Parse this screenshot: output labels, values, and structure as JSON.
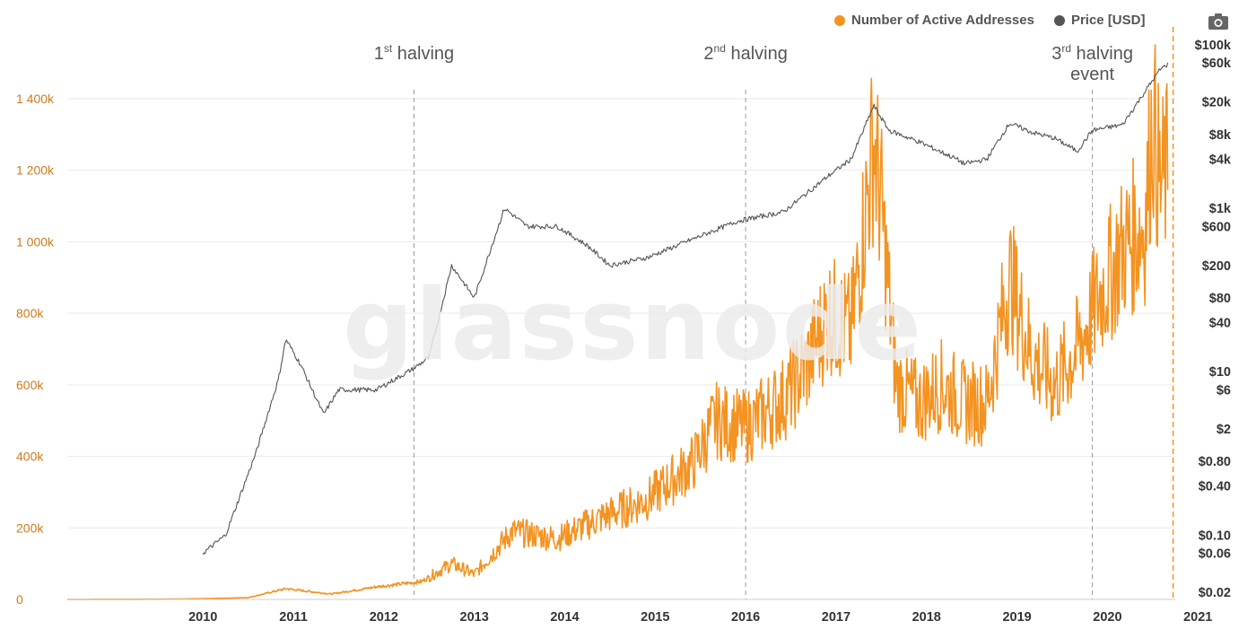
{
  "legend": {
    "active_label": "Number of Active Addresses",
    "price_label": "Price [USD]"
  },
  "watermark": "glassnode",
  "colors": {
    "active": "#f39322",
    "price": "#555555",
    "left_axis": "#cc7a1a",
    "grid": "#e9e9e9",
    "halving_line": "#999999"
  },
  "icons": {
    "export": "camera-icon"
  },
  "chart_data": [
    {
      "type": "line",
      "x_axis": {
        "ticks": [
          "2010",
          "2011",
          "2012",
          "2013",
          "2014",
          "2015",
          "2016",
          "2017",
          "2018",
          "2019",
          "2020",
          "2021"
        ],
        "range": [
          "2009-01",
          "2021-04"
        ]
      },
      "y_left": {
        "ticks": [
          "0",
          "200k",
          "400k",
          "600k",
          "800k",
          "1 000k",
          "1 200k",
          "1 400k"
        ],
        "range": [
          0,
          1400000
        ]
      },
      "y_right": {
        "scale": "log",
        "ticks": [
          "$100k",
          "$60k",
          "$20k",
          "$8k",
          "$4k",
          "$1k",
          "$600",
          "$200",
          "$80",
          "$40",
          "$10",
          "$6",
          "$2",
          "$0.80",
          "$0.40",
          "$0.10",
          "$0.06",
          "$0.02"
        ],
        "range": [
          0.02,
          100000
        ]
      },
      "annotations": [
        {
          "text": "1",
          "sup": "st",
          "rest": " halving",
          "line2": "",
          "date": "2012-11"
        },
        {
          "text": "2",
          "sup": "nd",
          "rest": " halving",
          "line2": "",
          "date": "2016-07"
        },
        {
          "text": "3",
          "sup": "rd",
          "rest": " halving",
          "line2": "event",
          "date": "2020-05"
        }
      ],
      "current_marker": "2021-03",
      "grid": true,
      "legend_position": "top-right",
      "series": [
        {
          "name": "Number of Active Addresses",
          "axis": "left",
          "points": [
            [
              "2009-01",
              0
            ],
            [
              "2010-01",
              500
            ],
            [
              "2010-07",
              2000
            ],
            [
              "2011-01",
              5000
            ],
            [
              "2011-06",
              30000
            ],
            [
              "2011-12",
              15000
            ],
            [
              "2012-06",
              35000
            ],
            [
              "2012-12",
              50000
            ],
            [
              "2013-04",
              100000
            ],
            [
              "2013-07",
              70000
            ],
            [
              "2013-12",
              190000
            ],
            [
              "2014-06",
              170000
            ],
            [
              "2014-12",
              230000
            ],
            [
              "2015-06",
              280000
            ],
            [
              "2015-12",
              380000
            ],
            [
              "2016-03",
              500000
            ],
            [
              "2016-07",
              480000
            ],
            [
              "2016-12",
              560000
            ],
            [
              "2017-03",
              650000
            ],
            [
              "2017-06",
              800000
            ],
            [
              "2017-09",
              750000
            ],
            [
              "2017-12",
              1280000
            ],
            [
              "2018-01",
              1100000
            ],
            [
              "2018-03",
              600000
            ],
            [
              "2018-06",
              550000
            ],
            [
              "2018-09",
              600000
            ],
            [
              "2018-12",
              550000
            ],
            [
              "2019-03",
              550000
            ],
            [
              "2019-06",
              900000
            ],
            [
              "2019-09",
              680000
            ],
            [
              "2019-12",
              600000
            ],
            [
              "2020-03",
              700000
            ],
            [
              "2020-06",
              850000
            ],
            [
              "2020-09",
              980000
            ],
            [
              "2020-12",
              1050000
            ],
            [
              "2021-01",
              1350000
            ],
            [
              "2021-02",
              1150000
            ],
            [
              "2021-03",
              1200000
            ]
          ]
        },
        {
          "name": "Price [USD]",
          "axis": "right",
          "points": [
            [
              "2010-07",
              0.06
            ],
            [
              "2010-10",
              0.1
            ],
            [
              "2011-02",
              1
            ],
            [
              "2011-05",
              8
            ],
            [
              "2011-06",
              25
            ],
            [
              "2011-08",
              12
            ],
            [
              "2011-11",
              3
            ],
            [
              "2012-01",
              6
            ],
            [
              "2012-06",
              6
            ],
            [
              "2012-11",
              11
            ],
            [
              "2013-01",
              15
            ],
            [
              "2013-04",
              200
            ],
            [
              "2013-07",
              80
            ],
            [
              "2013-11",
              1000
            ],
            [
              "2014-02",
              600
            ],
            [
              "2014-06",
              600
            ],
            [
              "2014-10",
              350
            ],
            [
              "2015-01",
              200
            ],
            [
              "2015-06",
              250
            ],
            [
              "2015-12",
              420
            ],
            [
              "2016-06",
              700
            ],
            [
              "2016-12",
              900
            ],
            [
              "2017-06",
              2500
            ],
            [
              "2017-09",
              4000
            ],
            [
              "2017-12",
              18000
            ],
            [
              "2018-02",
              9000
            ],
            [
              "2018-06",
              6500
            ],
            [
              "2018-11",
              4000
            ],
            [
              "2018-12",
              3500
            ],
            [
              "2019-03",
              4000
            ],
            [
              "2019-06",
              11000
            ],
            [
              "2019-09",
              8500
            ],
            [
              "2019-12",
              7200
            ],
            [
              "2020-03",
              5000
            ],
            [
              "2020-05",
              9000
            ],
            [
              "2020-09",
              10500
            ],
            [
              "2020-12",
              27000
            ],
            [
              "2021-02",
              50000
            ],
            [
              "2021-03",
              58000
            ]
          ]
        }
      ]
    }
  ]
}
